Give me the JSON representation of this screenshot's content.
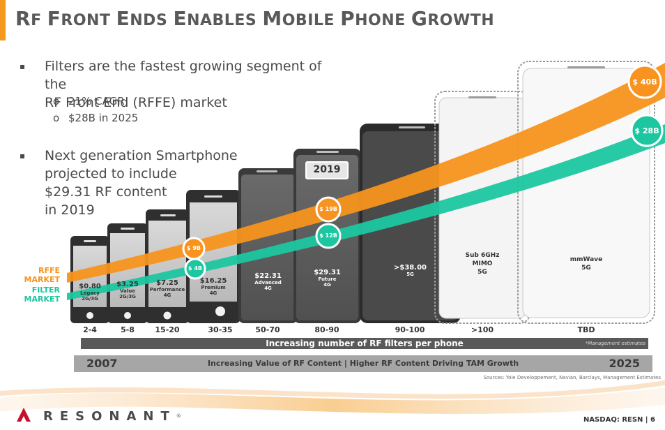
{
  "header": {
    "title_parts": [
      "R",
      "F ",
      "F",
      "RONT ",
      "E",
      "NDS ",
      "E",
      "NABLES ",
      "M",
      "OBILE ",
      "P",
      "HONE ",
      "G",
      "ROWTH"
    ]
  },
  "bullets": {
    "b1_line1": "Filters are the fastest growing segment of the",
    "b1_line2": "RF Front End (RFFE) market",
    "sub1": "21% CAGR",
    "sub2": "$28B in 2025",
    "b2_line1": "Next generation Smartphone",
    "b2_line2": "projected to include",
    "b2_line3": "$29.31 RF content",
    "b2_line4": "in 2019"
  },
  "phones": [
    {
      "price": "$0.80",
      "tier": "Legacy",
      "gen": "2G/3G",
      "filters": "2-4"
    },
    {
      "price": "$3.25",
      "tier": "Value",
      "gen": "2G/3G",
      "filters": "5-8"
    },
    {
      "price": "$7.25",
      "tier": "Performance",
      "gen": "4G",
      "filters": "15-20"
    },
    {
      "price": "$16.25",
      "tier": "Premium",
      "gen": "4G",
      "filters": "30-35"
    },
    {
      "price": "$22.31",
      "tier": "Advanced",
      "gen": "4G",
      "filters": "50-70"
    },
    {
      "price": "$29.31",
      "tier": "Future",
      "gen": "4G",
      "filters": "80-90"
    },
    {
      "price": ">$38.00",
      "tier": "5G",
      "gen": "",
      "filters": "90-100"
    },
    {
      "price": "Sub 6GHz",
      "tier": "MIMO",
      "gen": "5G",
      "filters": ">100"
    },
    {
      "price": "mmWave",
      "tier": "5G",
      "gen": "",
      "filters": "TBD"
    }
  ],
  "year_badge": "2019",
  "markers": {
    "rffe_9b": "$ 9B",
    "rffe_19b": "$ 19B",
    "rffe_40b": "$ 40B",
    "filter_4b": "$ 4B",
    "filter_12b": "$ 12B",
    "filter_28b": "$ 28B"
  },
  "legend": {
    "rffe1": "RFFE",
    "rffe2": "MARKET",
    "filter1": "FILTER",
    "filter2": "MARKET"
  },
  "bars": {
    "rf_filters": "Increasing number of RF filters per phone",
    "mgmt_note": "*Management estimates",
    "year_start": "2007",
    "year_end": "2025",
    "value_text": "Increasing Value of RF Content | Higher RF Content Driving TAM Growth"
  },
  "sources": "Sources: Yole Developpement, Navian, Barclays, Management Estimates",
  "footer": {
    "brand": "RESONANT",
    "reg": "®",
    "page": "NASDAQ: RESN | 6"
  },
  "colors": {
    "orange": "#f7931e",
    "teal": "#1cc6a0",
    "accent": "#f39a1e"
  }
}
